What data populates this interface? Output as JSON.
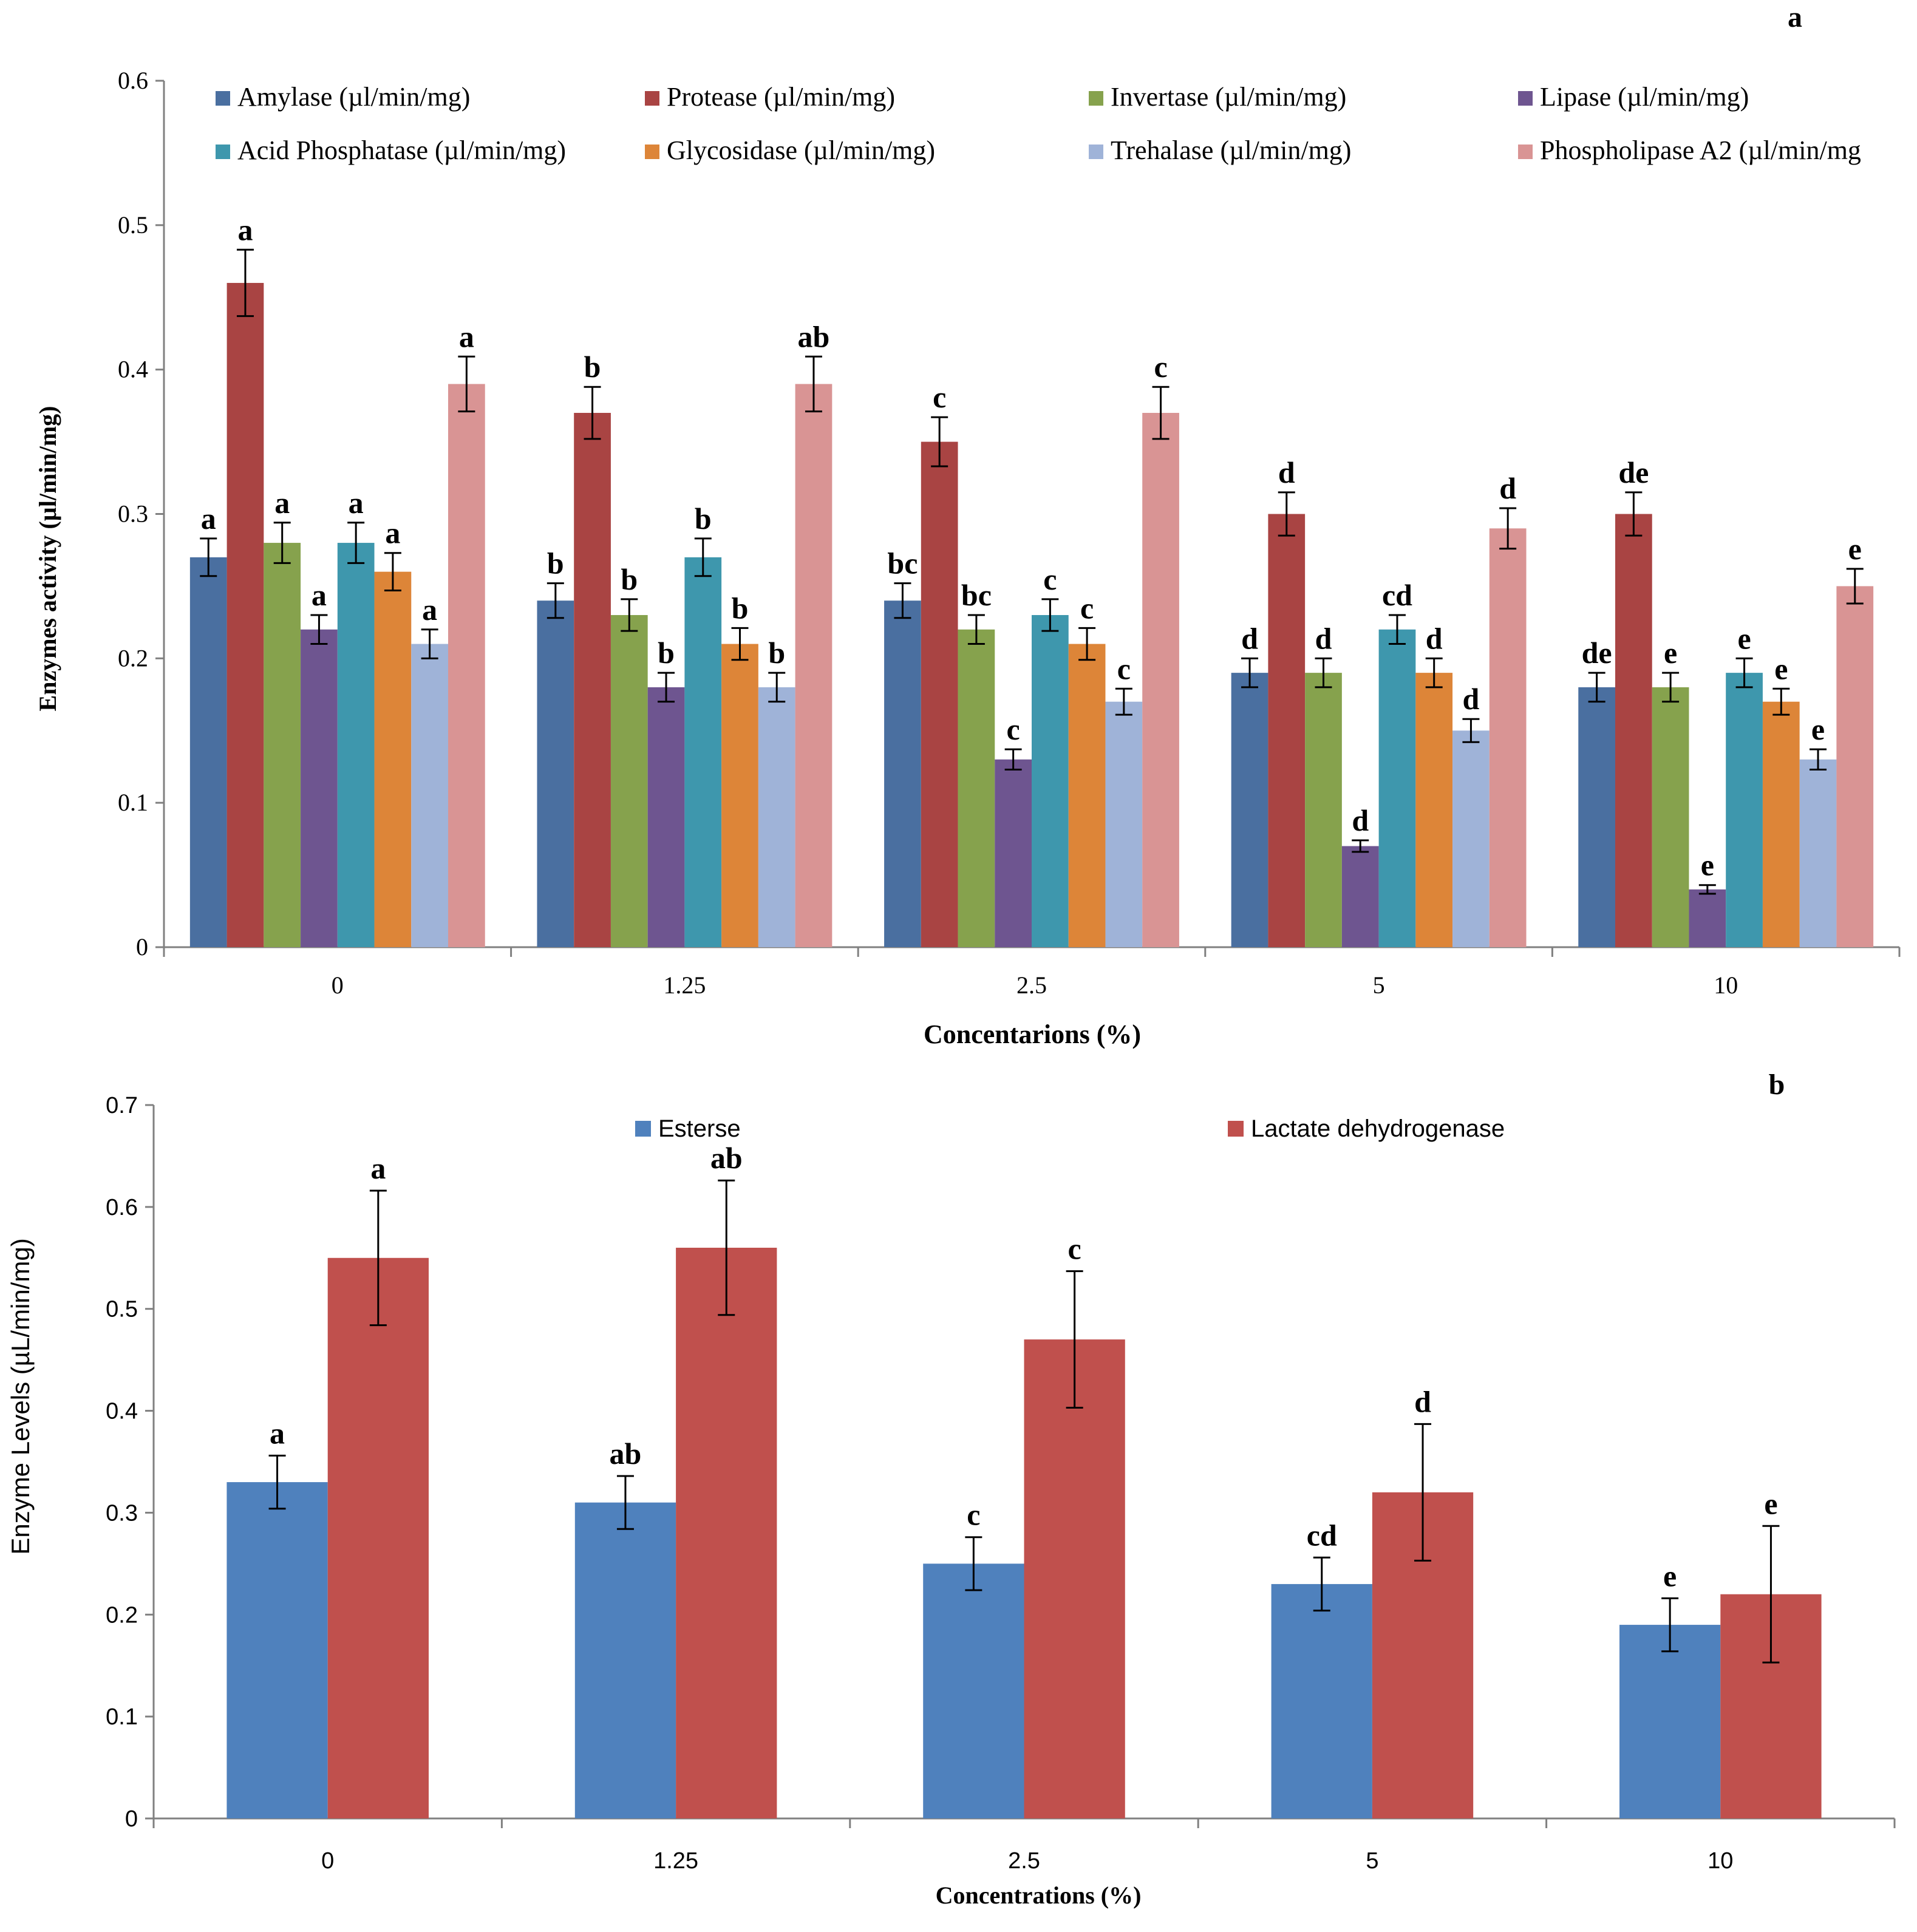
{
  "chart_data": [
    {
      "type": "bar",
      "panel_label": "a",
      "title": "",
      "xlabel": "Concentarions  (%)",
      "ylabel": "Enzymes  activity  (µl/min/mg)",
      "ylim": [
        0,
        0.6
      ],
      "yticks": [
        "0",
        "0.1",
        "0.2",
        "0.3",
        "0.4",
        "0.5",
        "0.6"
      ],
      "categories": [
        "0",
        "1.25",
        "2.5",
        "5",
        "10"
      ],
      "legend_position": "top",
      "grid": false,
      "series": [
        {
          "name": "Amylase (µl/min/mg)",
          "color": "#4a6fa0",
          "values": [
            0.27,
            0.24,
            0.24,
            0.19,
            0.18
          ],
          "errors": [
            0.013,
            0.012,
            0.012,
            0.01,
            0.01
          ],
          "letters": [
            "a",
            "b",
            "bc",
            "d",
            "de"
          ]
        },
        {
          "name": "Protease (µl/min/mg)",
          "color": "#a94443",
          "values": [
            0.46,
            0.37,
            0.35,
            0.3,
            0.3
          ],
          "errors": [
            0.023,
            0.018,
            0.017,
            0.015,
            0.015
          ],
          "letters": [
            "a",
            "b",
            "c",
            "d",
            "de"
          ]
        },
        {
          "name": "Invertase (µl/min/mg)",
          "color": "#86a24d",
          "values": [
            0.28,
            0.23,
            0.22,
            0.19,
            0.18
          ],
          "errors": [
            0.014,
            0.011,
            0.01,
            0.01,
            0.01
          ],
          "letters": [
            "a",
            "b",
            "bc",
            "d",
            "e"
          ]
        },
        {
          "name": "Lipase (µl/min/mg)",
          "color": "#6e5590",
          "values": [
            0.22,
            0.18,
            0.13,
            0.07,
            0.04
          ],
          "errors": [
            0.01,
            0.01,
            0.007,
            0.004,
            0.003
          ],
          "letters": [
            "a",
            "b",
            "c",
            "d",
            "e"
          ]
        },
        {
          "name": "Acid Phosphatase (µl/min/mg)",
          "color": "#3e97ad",
          "values": [
            0.28,
            0.27,
            0.23,
            0.22,
            0.19
          ],
          "errors": [
            0.014,
            0.013,
            0.011,
            0.01,
            0.01
          ],
          "letters": [
            "a",
            "b",
            "c",
            "cd",
            "e"
          ]
        },
        {
          "name": "Glycosidase (µl/min/mg)",
          "color": "#dd8538",
          "values": [
            0.26,
            0.21,
            0.21,
            0.19,
            0.17
          ],
          "errors": [
            0.013,
            0.011,
            0.011,
            0.01,
            0.009
          ],
          "letters": [
            "a",
            "b",
            "c",
            "d",
            "e"
          ]
        },
        {
          "name": "Trehalase (µl/min/mg)",
          "color": "#9fb3d8",
          "values": [
            0.21,
            0.18,
            0.17,
            0.15,
            0.13
          ],
          "errors": [
            0.01,
            0.01,
            0.009,
            0.008,
            0.007
          ],
          "letters": [
            "a",
            "b",
            "c",
            "d",
            "e"
          ]
        },
        {
          "name": "Phospholipase A2  (µl/min/mg",
          "color": "#d99494",
          "values": [
            0.39,
            0.39,
            0.37,
            0.29,
            0.25
          ],
          "errors": [
            0.019,
            0.019,
            0.018,
            0.014,
            0.012
          ],
          "letters": [
            "a",
            "ab",
            "c",
            "d",
            "e"
          ]
        }
      ]
    },
    {
      "type": "bar",
      "panel_label": "b",
      "title": "",
      "xlabel": "Concentrations (%)",
      "ylabel": "Enzyme Levels (µL/min/mg)",
      "ylim": [
        0,
        0.7
      ],
      "yticks": [
        "0",
        "0.1",
        "0.2",
        "0.3",
        "0.4",
        "0.5",
        "0.6",
        "0.7"
      ],
      "categories": [
        "0",
        "1.25",
        "2.5",
        "5",
        "10"
      ],
      "legend_position": "top",
      "grid": false,
      "series": [
        {
          "name": "Esterse",
          "color": "#4f81bd",
          "values": [
            0.33,
            0.31,
            0.25,
            0.23,
            0.19
          ],
          "errors": [
            0.026,
            0.026,
            0.026,
            0.026,
            0.026
          ],
          "letters": [
            "a",
            "ab",
            "c",
            "cd",
            "e"
          ]
        },
        {
          "name": "Lactate dehydrogenase",
          "color": "#c0504d",
          "values": [
            0.55,
            0.56,
            0.47,
            0.32,
            0.22
          ],
          "errors": [
            0.066,
            0.066,
            0.067,
            0.067,
            0.067
          ],
          "letters": [
            "a",
            "ab",
            "c",
            "d",
            "e"
          ]
        }
      ]
    }
  ]
}
